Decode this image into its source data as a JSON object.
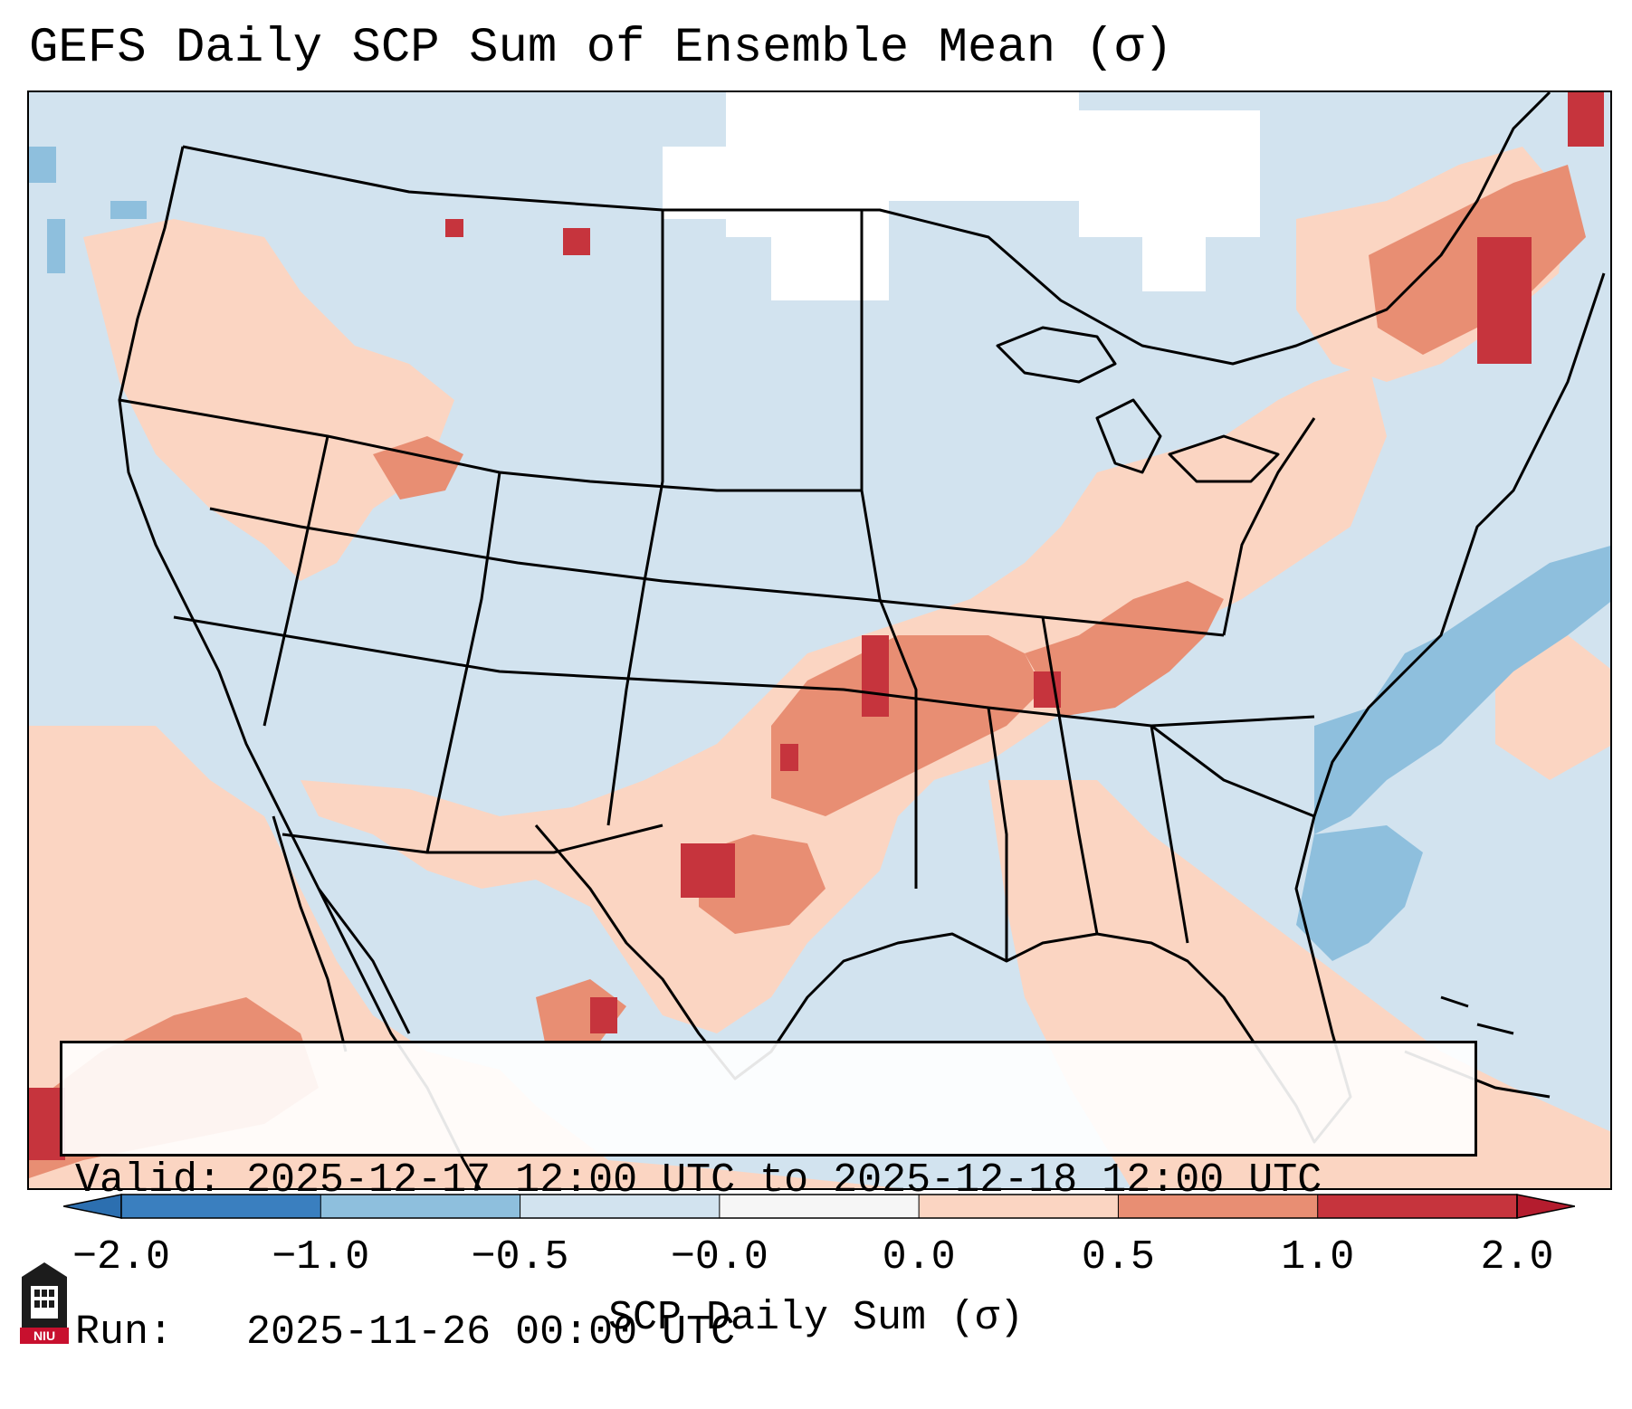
{
  "title": "GEFS Daily SCP Sum of Ensemble Mean (σ)",
  "info": {
    "valid_label": "Valid:",
    "valid_value": "2025-12-17 12:00 UTC to 2025-12-18 12:00 UTC",
    "run_label": "Run:",
    "run_value": "2025-11-26 00:00 UTC"
  },
  "colorbar": {
    "label": "SCP Daily Sum (σ)",
    "ticks": [
      "−2.0",
      "−1.0",
      "−0.5",
      "−0.0",
      "0.0",
      "0.5",
      "1.0",
      "2.0"
    ],
    "colors": [
      "#3a7fbf",
      "#8ebfdd",
      "#d2e3ef",
      "#f6f6f6",
      "#fbd5c2",
      "#e88e73",
      "#c6343d"
    ],
    "extend_low_color": "#2c6fb0",
    "extend_high_color": "#b41c2e"
  },
  "map": {
    "ocean_color": "#d2e3ef",
    "positive_fill": "#fbd5c2",
    "mid_fill": "#e88e73",
    "high_fill": "#c6343d",
    "negative_fill": "#8ebfdd",
    "neutral_fill": "#ffffff",
    "border_color": "#000000"
  },
  "logo": {
    "text": "NIU",
    "icon": "niu-logo-icon"
  }
}
